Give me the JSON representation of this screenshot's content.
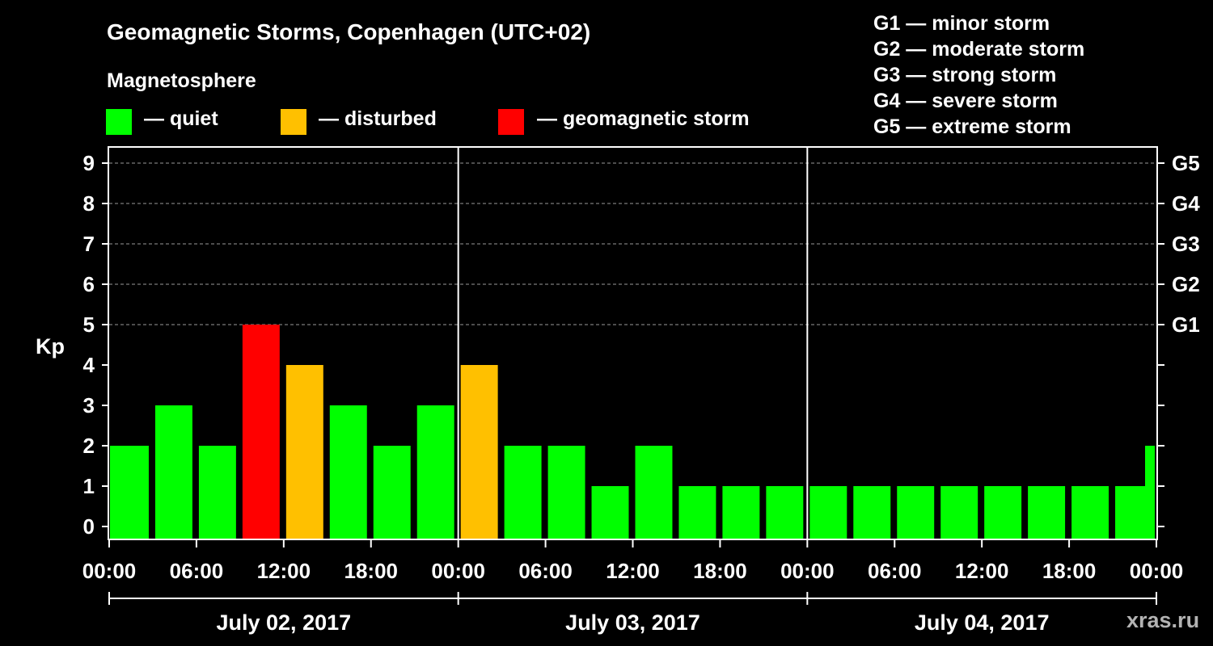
{
  "title": "Geomagnetic Storms, Copenhagen (UTC+02)",
  "legend": {
    "heading": "Magnetosphere",
    "items": [
      {
        "label": "— quiet",
        "color": "#00ff00"
      },
      {
        "label": "— disturbed",
        "color": "#ffc000"
      },
      {
        "label": "— geomagnetic storm",
        "color": "#ff0000"
      }
    ]
  },
  "g_scale": [
    {
      "label": "G1 — minor storm"
    },
    {
      "label": "G2 — moderate storm"
    },
    {
      "label": "G3 — strong storm"
    },
    {
      "label": "G4 — severe storm"
    },
    {
      "label": "G5 — extreme storm"
    }
  ],
  "watermark": "xras.ru",
  "chart_data": {
    "type": "bar",
    "title": "Geomagnetic Storms, Copenhagen (UTC+02)",
    "ylabel": "Kp",
    "ylim": [
      0,
      9
    ],
    "yticks": [
      0,
      1,
      2,
      3,
      4,
      5,
      6,
      7,
      8,
      9
    ],
    "right_ticks": [
      {
        "value": 5,
        "label": "G1"
      },
      {
        "value": 6,
        "label": "G2"
      },
      {
        "value": 7,
        "label": "G3"
      },
      {
        "value": 8,
        "label": "G4"
      },
      {
        "value": 9,
        "label": "G5"
      }
    ],
    "x_tick_labels": [
      "00:00",
      "06:00",
      "12:00",
      "18:00",
      "00:00",
      "06:00",
      "12:00",
      "18:00",
      "00:00",
      "06:00",
      "12:00",
      "18:00",
      "00:00"
    ],
    "days": [
      "July 02, 2017",
      "July 03, 2017",
      "July 04, 2017"
    ],
    "grid": "horizontal dashed at 5-9",
    "status_colors": {
      "quiet": "#00ff00",
      "disturbed": "#ffc000",
      "storm": "#ff0000"
    },
    "bars": [
      {
        "start_hour": 0,
        "end_hour": 3,
        "kp": 2,
        "status": "quiet"
      },
      {
        "start_hour": 3,
        "end_hour": 6,
        "kp": 3,
        "status": "quiet"
      },
      {
        "start_hour": 6,
        "end_hour": 9,
        "kp": 2,
        "status": "quiet"
      },
      {
        "start_hour": 9,
        "end_hour": 12,
        "kp": 5,
        "status": "storm"
      },
      {
        "start_hour": 12,
        "end_hour": 15,
        "kp": 4,
        "status": "disturbed"
      },
      {
        "start_hour": 15,
        "end_hour": 18,
        "kp": 3,
        "status": "quiet"
      },
      {
        "start_hour": 18,
        "end_hour": 21,
        "kp": 2,
        "status": "quiet"
      },
      {
        "start_hour": 21,
        "end_hour": 24,
        "kp": 3,
        "status": "quiet"
      },
      {
        "start_hour": 24,
        "end_hour": 27,
        "kp": 4,
        "status": "disturbed"
      },
      {
        "start_hour": 27,
        "end_hour": 30,
        "kp": 2,
        "status": "quiet"
      },
      {
        "start_hour": 30,
        "end_hour": 33,
        "kp": 2,
        "status": "quiet"
      },
      {
        "start_hour": 33,
        "end_hour": 36,
        "kp": 1,
        "status": "quiet"
      },
      {
        "start_hour": 36,
        "end_hour": 39,
        "kp": 2,
        "status": "quiet"
      },
      {
        "start_hour": 39,
        "end_hour": 42,
        "kp": 1,
        "status": "quiet"
      },
      {
        "start_hour": 42,
        "end_hour": 45,
        "kp": 1,
        "status": "quiet"
      },
      {
        "start_hour": 45,
        "end_hour": 48,
        "kp": 1,
        "status": "quiet"
      },
      {
        "start_hour": 48,
        "end_hour": 51,
        "kp": 1,
        "status": "quiet"
      },
      {
        "start_hour": 51,
        "end_hour": 54,
        "kp": 1,
        "status": "quiet"
      },
      {
        "start_hour": 54,
        "end_hour": 57,
        "kp": 1,
        "status": "quiet"
      },
      {
        "start_hour": 57,
        "end_hour": 60,
        "kp": 1,
        "status": "quiet"
      },
      {
        "start_hour": 60,
        "end_hour": 63,
        "kp": 1,
        "status": "quiet"
      },
      {
        "start_hour": 63,
        "end_hour": 66,
        "kp": 1,
        "status": "quiet"
      },
      {
        "start_hour": 66,
        "end_hour": 69,
        "kp": 1,
        "status": "quiet"
      },
      {
        "start_hour": 69,
        "end_hour": 72,
        "kp": 1,
        "status": "quiet"
      }
    ]
  }
}
